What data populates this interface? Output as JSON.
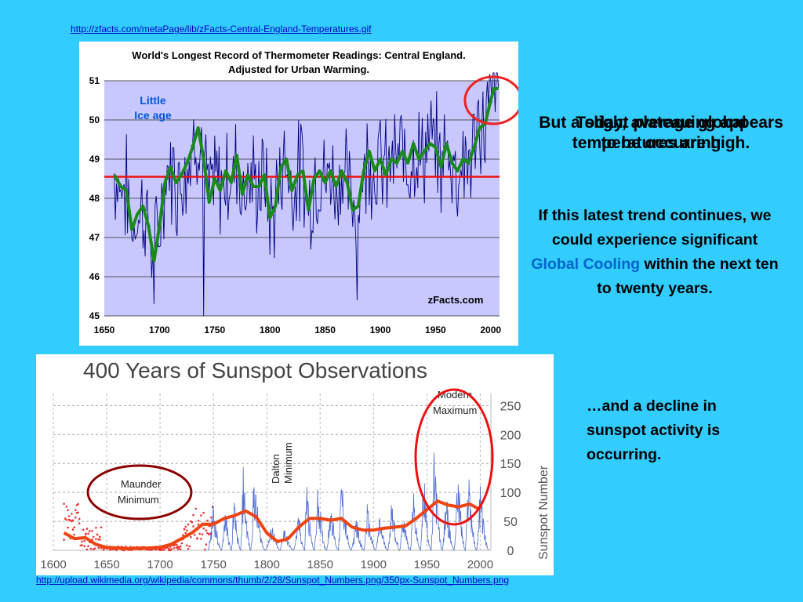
{
  "slide": {
    "url_top": "http://zfacts.com/metaPage/lib/zFacts-Central-England-Temperatures.gif",
    "url_bottom": "http://upload.wikimedia.org/wikipedia/commons/thumb/2/28/Sunspot_Numbers.png/350px-Sunspot_Numbers.png",
    "text_plateau": "But a slight plateauing appears to be occurring",
    "text_today": "Today, average global temperatures are high.",
    "text_trend_a": "If this latest trend continues, we could experience significant",
    "text_trend_highlight": "Global Cooling",
    "text_trend_b": "within the next ten to twenty years.",
    "text_sunspot": "…and a decline in sunspot activity is occurring.",
    "highlight_color": "#0066cc",
    "background_color": "#33ccff"
  },
  "chart_data": [
    {
      "type": "line",
      "title": "World's Longest Record of Thermometer Readings: Central England.",
      "subtitle": "Adjusted for Urban Warming.",
      "watermark": "zFacts.com",
      "annotation": "Little Ice age",
      "xlim": [
        1650,
        2008
      ],
      "ylim": [
        45,
        51
      ],
      "x_ticks": [
        1650,
        1700,
        1750,
        1800,
        1850,
        1900,
        1950,
        2000
      ],
      "y_ticks": [
        45,
        46,
        47,
        48,
        49,
        50,
        51
      ],
      "grid": true,
      "reference_line": 48.55,
      "series": [
        {
          "role": "smoothed average (green)",
          "color": "#1a8a1a",
          "x": [
            1659,
            1665,
            1670,
            1675,
            1680,
            1685,
            1690,
            1695,
            1700,
            1705,
            1710,
            1715,
            1720,
            1725,
            1730,
            1735,
            1740,
            1745,
            1750,
            1755,
            1760,
            1765,
            1770,
            1775,
            1780,
            1785,
            1790,
            1795,
            1800,
            1805,
            1810,
            1815,
            1820,
            1825,
            1830,
            1835,
            1840,
            1845,
            1850,
            1855,
            1860,
            1865,
            1870,
            1875,
            1880,
            1885,
            1890,
            1895,
            1900,
            1905,
            1910,
            1915,
            1920,
            1925,
            1930,
            1935,
            1940,
            1945,
            1950,
            1955,
            1960,
            1965,
            1970,
            1975,
            1980,
            1985,
            1990,
            1995,
            2000,
            2003,
            2007
          ],
          "y": [
            48.6,
            48.3,
            48.2,
            47.2,
            47.6,
            47.8,
            47.3,
            46.4,
            47.3,
            48.4,
            48.8,
            48.4,
            48.6,
            48.9,
            49.3,
            49.8,
            49.0,
            47.9,
            48.5,
            48.2,
            48.7,
            48.4,
            49.1,
            48.1,
            48.6,
            48.3,
            48.3,
            48.6,
            47.5,
            47.8,
            48.8,
            49.0,
            48.2,
            48.6,
            48.7,
            47.7,
            48.5,
            48.7,
            48.4,
            48.7,
            48.3,
            48.7,
            48.4,
            47.7,
            47.8,
            48.7,
            49.2,
            48.7,
            49.0,
            48.6,
            49.0,
            48.9,
            49.2,
            48.9,
            49.4,
            49.0,
            49.2,
            49.4,
            49.3,
            48.8,
            49.4,
            48.9,
            48.7,
            49.0,
            48.9,
            49.3,
            49.8,
            49.9,
            50.5,
            50.8,
            50.8
          ]
        },
        {
          "role": "annual readings (blue)",
          "color": "#000080",
          "range": [
            45,
            51.2
          ]
        }
      ]
    },
    {
      "type": "line",
      "title": "400 Years of Sunspot Observations",
      "ylabel": "Sunspot Number",
      "xlim": [
        1600,
        2010
      ],
      "ylim": [
        0,
        260
      ],
      "x_ticks": [
        1600,
        1650,
        1700,
        1750,
        1800,
        1850,
        1900,
        1950,
        2000
      ],
      "y_ticks": [
        0,
        50,
        100,
        150,
        200,
        250
      ],
      "annotations": [
        "Maunder Minimum",
        "Dalton Minimum",
        "Modern Maximum"
      ],
      "series": [
        {
          "role": "average (orange)",
          "color": "#ee4411",
          "x": [
            1610,
            1620,
            1630,
            1640,
            1650,
            1660,
            1670,
            1680,
            1690,
            1700,
            1710,
            1720,
            1730,
            1740,
            1750,
            1760,
            1770,
            1780,
            1790,
            1800,
            1810,
            1820,
            1830,
            1840,
            1850,
            1860,
            1870,
            1880,
            1890,
            1900,
            1910,
            1920,
            1930,
            1940,
            1950,
            1960,
            1970,
            1980,
            1990,
            2000
          ],
          "y": [
            30,
            20,
            22,
            10,
            5,
            4,
            3,
            3,
            4,
            5,
            10,
            20,
            30,
            45,
            45,
            55,
            60,
            68,
            58,
            30,
            15,
            20,
            40,
            55,
            55,
            52,
            55,
            40,
            35,
            35,
            38,
            40,
            42,
            55,
            70,
            85,
            78,
            75,
            80,
            70
          ]
        },
        {
          "role": "observations (blue)",
          "color": "#3355cc",
          "cycle_peaks": [
            [
              1750,
              90
            ],
            [
              1761,
              85
            ],
            [
              1769,
              105
            ],
            [
              1778,
              155
            ],
            [
              1788,
              140
            ],
            [
              1805,
              50
            ],
            [
              1816,
              48
            ],
            [
              1830,
              70
            ],
            [
              1837,
              140
            ],
            [
              1848,
              125
            ],
            [
              1860,
              95
            ],
            [
              1870,
              140
            ],
            [
              1884,
              65
            ],
            [
              1894,
              85
            ],
            [
              1906,
              65
            ],
            [
              1917,
              105
            ],
            [
              1928,
              80
            ],
            [
              1937,
              115
            ],
            [
              1947,
              150
            ],
            [
              1957,
              190
            ],
            [
              1968,
              110
            ],
            [
              1979,
              160
            ],
            [
              1989,
              160
            ],
            [
              2000,
              120
            ]
          ]
        },
        {
          "role": "early observations (red)",
          "color": "#ee3333",
          "range": [
            1610,
            1750
          ]
        }
      ]
    }
  ]
}
